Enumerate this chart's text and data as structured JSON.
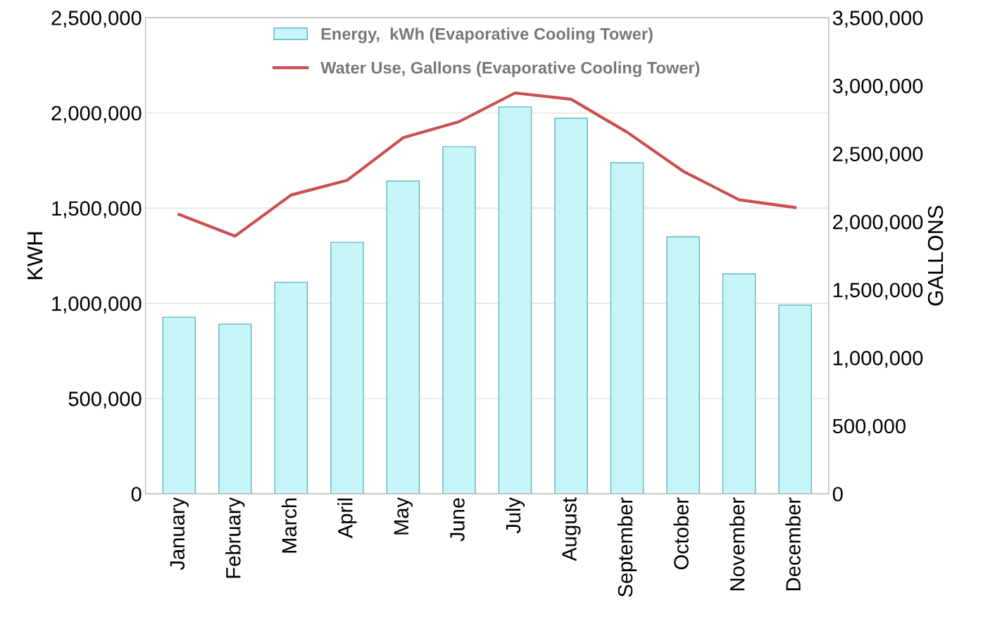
{
  "chart_data": {
    "type": "bar",
    "categories": [
      "January",
      "February",
      "March",
      "April",
      "May",
      "June",
      "July",
      "August",
      "September",
      "October",
      "November",
      "December"
    ],
    "ylabel": "KWH",
    "y2label": "GALLONS",
    "series": [
      {
        "name": "Energy,  kWh (Evaporative Cooling Tower)",
        "color": "#c8f5fa",
        "values": [
          927000,
          891000,
          1111000,
          1320000,
          1642000,
          1822000,
          2031000,
          1972000,
          1738000,
          1349000,
          1155000,
          990000
        ]
      },
      {
        "name": "Water Use, Gallons (Evaporative Cooling Tower)",
        "type": "line",
        "axis": "y2",
        "color": "#c9504f",
        "values": [
          2053000,
          1894000,
          2196000,
          2304000,
          2617000,
          2735000,
          2946000,
          2900000,
          2658000,
          2371000,
          2161000,
          2104000
        ]
      }
    ],
    "ylim": [
      0,
      2500000
    ],
    "yticks": [
      {
        "value": 0,
        "label": "0"
      },
      {
        "value": 500000,
        "label": "500,000"
      },
      {
        "value": 1000000,
        "label": "1,000,000"
      },
      {
        "value": 1500000,
        "label": "1,500,000"
      },
      {
        "value": 2000000,
        "label": "2,000,000"
      },
      {
        "value": 2500000,
        "label": "2,500,000"
      }
    ],
    "y2lim": [
      0,
      3500000
    ],
    "y2ticks": [
      {
        "value": 0,
        "label": "0"
      },
      {
        "value": 500000,
        "label": "500,000"
      },
      {
        "value": 1000000,
        "label": "1,000,000"
      },
      {
        "value": 1500000,
        "label": "1,500,000"
      },
      {
        "value": 2000000,
        "label": "2,000,000"
      },
      {
        "value": 2500000,
        "label": "2,500,000"
      },
      {
        "value": 3000000,
        "label": "3,000,000"
      },
      {
        "value": 3500000,
        "label": "3,500,000"
      }
    ],
    "grid": "y",
    "legend": "top",
    "marker": "none",
    "line_style": "solid"
  }
}
